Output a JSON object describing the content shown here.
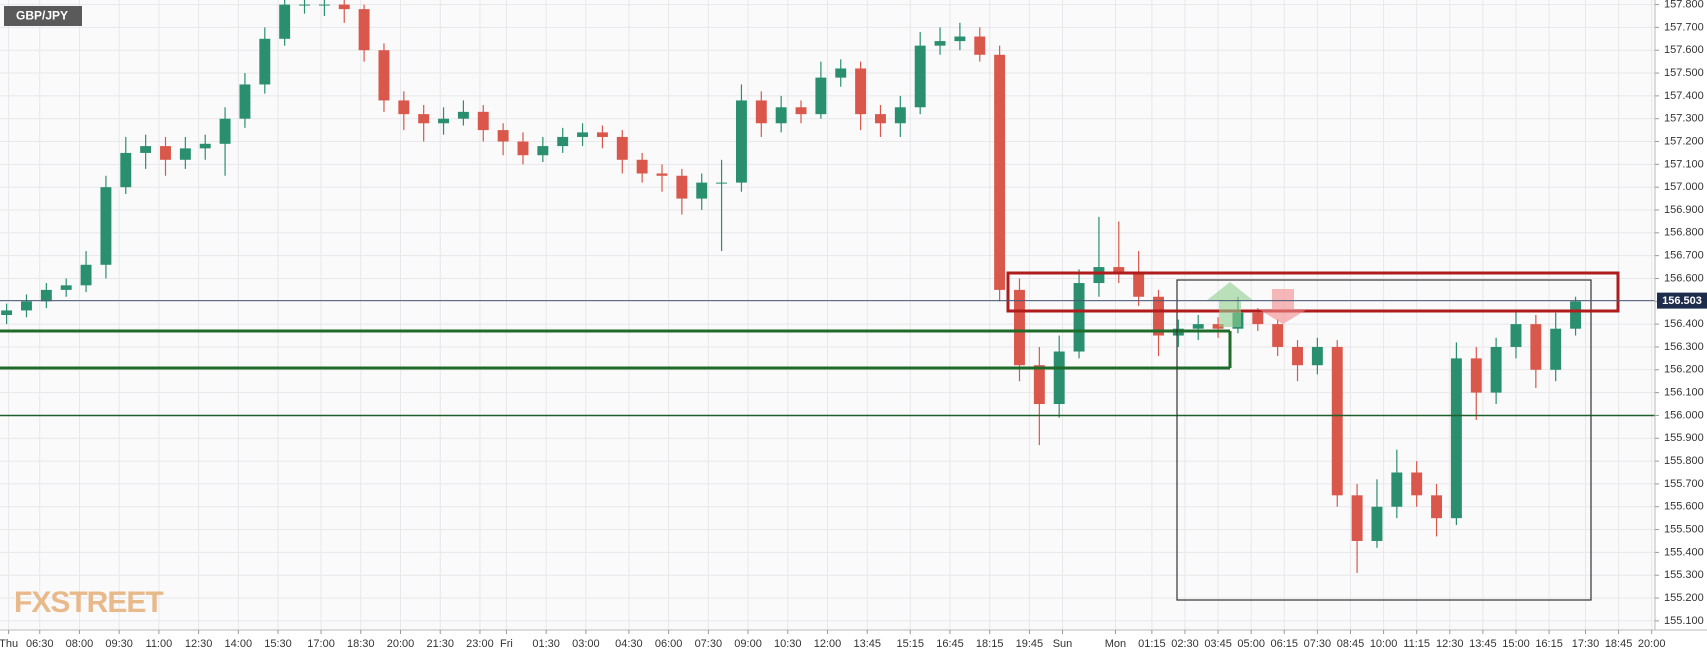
{
  "chart_data": {
    "type": "candlestick",
    "title": "GBP/JPY",
    "watermark": "FXSTREET",
    "x": [
      1,
      4,
      7,
      10,
      13,
      16,
      19,
      22,
      25,
      28,
      31,
      34,
      37,
      40,
      43,
      46,
      49,
      52,
      55,
      58,
      61,
      64,
      67,
      70,
      73,
      76,
      79,
      82,
      85,
      88,
      91,
      94,
      97,
      100,
      103,
      106,
      109,
      112,
      115,
      118,
      121,
      124,
      127,
      130,
      133,
      136,
      139,
      142,
      145,
      148,
      151,
      154,
      157,
      160,
      163,
      166,
      169,
      172,
      175,
      178,
      181,
      184,
      187,
      190,
      193,
      196,
      199,
      202,
      205,
      208,
      211,
      214,
      217,
      220,
      223,
      226,
      229,
      232,
      235,
      238
    ],
    "open": [
      156.44,
      156.46,
      156.5,
      156.55,
      156.57,
      156.66,
      157.0,
      157.15,
      157.18,
      157.12,
      157.17,
      157.19,
      157.3,
      157.45,
      157.65,
      157.8,
      157.8,
      157.8,
      157.78,
      157.6,
      157.38,
      157.32,
      157.28,
      157.3,
      157.33,
      157.25,
      157.2,
      157.14,
      157.18,
      157.22,
      157.24,
      157.22,
      157.12,
      157.06,
      157.05,
      156.95,
      157.02,
      157.02,
      157.38,
      157.28,
      157.35,
      157.32,
      157.48,
      157.52,
      157.32,
      157.28,
      157.35,
      157.62,
      157.64,
      157.66,
      157.58,
      156.55,
      156.22,
      156.05,
      156.28,
      156.58,
      156.65,
      156.62,
      156.52,
      156.35,
      156.38,
      156.4,
      156.38,
      156.45,
      156.4,
      156.3,
      156.22,
      156.3,
      155.65,
      155.45,
      155.6,
      155.75,
      155.65,
      155.55,
      156.25,
      156.1,
      156.3,
      156.4,
      156.2,
      156.38
    ],
    "high": [
      156.49,
      156.53,
      156.58,
      156.6,
      156.72,
      157.05,
      157.22,
      157.23,
      157.22,
      157.22,
      157.23,
      157.35,
      157.5,
      157.7,
      157.82,
      157.82,
      157.82,
      157.82,
      157.8,
      157.63,
      157.42,
      157.36,
      157.35,
      157.38,
      157.36,
      157.28,
      157.24,
      157.22,
      157.26,
      157.28,
      157.27,
      157.25,
      157.15,
      157.1,
      157.08,
      157.06,
      157.12,
      157.45,
      157.42,
      157.4,
      157.38,
      157.55,
      157.56,
      157.55,
      157.36,
      157.4,
      157.68,
      157.7,
      157.72,
      157.7,
      157.62,
      156.6,
      156.3,
      156.35,
      156.64,
      156.87,
      156.85,
      156.72,
      156.55,
      156.42,
      156.44,
      156.43,
      156.52,
      156.47,
      156.42,
      156.33,
      156.34,
      156.33,
      155.7,
      155.72,
      155.85,
      155.8,
      155.7,
      156.32,
      156.3,
      156.34,
      156.46,
      156.44,
      156.45,
      156.52
    ],
    "low": [
      156.4,
      156.43,
      156.47,
      156.52,
      156.54,
      156.6,
      156.97,
      157.08,
      157.05,
      157.08,
      157.12,
      157.05,
      157.26,
      157.41,
      157.62,
      157.76,
      157.75,
      157.72,
      157.55,
      157.33,
      157.25,
      157.2,
      157.23,
      157.27,
      157.2,
      157.14,
      157.1,
      157.11,
      157.15,
      157.18,
      157.17,
      157.06,
      157.02,
      156.98,
      156.88,
      156.9,
      156.72,
      156.98,
      157.22,
      157.24,
      157.28,
      157.3,
      157.44,
      157.25,
      157.22,
      157.22,
      157.32,
      157.58,
      157.6,
      157.55,
      156.5,
      156.15,
      155.87,
      155.99,
      156.25,
      156.52,
      156.58,
      156.48,
      156.26,
      156.3,
      156.33,
      156.34,
      156.36,
      156.37,
      156.26,
      156.15,
      156.18,
      155.6,
      155.31,
      155.42,
      155.55,
      155.6,
      155.47,
      155.52,
      155.98,
      156.05,
      156.25,
      156.12,
      156.15,
      156.35
    ],
    "close": [
      156.46,
      156.5,
      156.55,
      156.57,
      156.66,
      157.0,
      157.15,
      157.18,
      157.12,
      157.17,
      157.19,
      157.3,
      157.45,
      157.65,
      157.8,
      157.8,
      157.8,
      157.78,
      157.6,
      157.38,
      157.32,
      157.28,
      157.3,
      157.33,
      157.25,
      157.2,
      157.14,
      157.18,
      157.22,
      157.24,
      157.22,
      157.12,
      157.06,
      157.05,
      156.95,
      157.02,
      157.02,
      157.38,
      157.28,
      157.35,
      157.32,
      157.48,
      157.52,
      157.32,
      157.28,
      157.35,
      157.62,
      157.64,
      157.66,
      157.58,
      156.55,
      156.22,
      156.05,
      156.28,
      156.58,
      156.65,
      156.62,
      156.52,
      156.35,
      156.38,
      156.4,
      156.38,
      156.45,
      156.4,
      156.3,
      156.22,
      156.3,
      155.65,
      155.45,
      155.6,
      155.75,
      155.65,
      155.55,
      156.25,
      156.1,
      156.3,
      156.4,
      156.2,
      156.38,
      156.5
    ],
    "up_color": "#2a8f6f",
    "down_color": "#d9574b",
    "last_price": 156.503,
    "xlim": [
      0,
      250
    ],
    "xticks": [
      {
        "value": 1.3,
        "label": "Thu"
      },
      {
        "value": 6,
        "label": "06:30"
      },
      {
        "value": 12,
        "label": "08:00"
      },
      {
        "value": 18,
        "label": "09:30"
      },
      {
        "value": 24,
        "label": "11:00"
      },
      {
        "value": 30,
        "label": "12:30"
      },
      {
        "value": 36,
        "label": "14:00"
      },
      {
        "value": 42,
        "label": "15:30"
      },
      {
        "value": 48.5,
        "label": "17:00"
      },
      {
        "value": 54.5,
        "label": "18:30"
      },
      {
        "value": 60.5,
        "label": "20:00"
      },
      {
        "value": 66.5,
        "label": "21:30"
      },
      {
        "value": 72.5,
        "label": "23:00"
      },
      {
        "value": 76.5,
        "label": "Fri"
      },
      {
        "value": 82.5,
        "label": "01:30"
      },
      {
        "value": 88.5,
        "label": "03:00"
      },
      {
        "value": 95,
        "label": "04:30"
      },
      {
        "value": 101,
        "label": "06:00"
      },
      {
        "value": 107,
        "label": "07:30"
      },
      {
        "value": 113,
        "label": "09:00"
      },
      {
        "value": 119,
        "label": "10:30"
      },
      {
        "value": 125,
        "label": "12:00"
      },
      {
        "value": 131,
        "label": "13:45"
      },
      {
        "value": 137.5,
        "label": "15:15"
      },
      {
        "value": 143.5,
        "label": "16:45"
      },
      {
        "value": 149.5,
        "label": "18:15"
      },
      {
        "value": 155.5,
        "label": "19:45"
      },
      {
        "value": 160.5,
        "label": "Sun"
      },
      {
        "value": 168.5,
        "label": "Mon"
      },
      {
        "value": 174,
        "label": "01:15"
      },
      {
        "value": 179,
        "label": "02:30"
      },
      {
        "value": 184,
        "label": "03:45"
      },
      {
        "value": 189,
        "label": "05:00"
      },
      {
        "value": 194,
        "label": "06:15"
      },
      {
        "value": 199,
        "label": "07:30"
      },
      {
        "value": 204,
        "label": "08:45"
      },
      {
        "value": 209,
        "label": "10:00"
      },
      {
        "value": 214,
        "label": "11:15"
      },
      {
        "value": 219,
        "label": "12:30"
      },
      {
        "value": 224,
        "label": "13:45"
      },
      {
        "value": 229,
        "label": "15:00"
      },
      {
        "value": 234,
        "label": "16:15"
      },
      {
        "value": 239.5,
        "label": "17:30"
      },
      {
        "value": 244.5,
        "label": "18:45"
      },
      {
        "value": 249.5,
        "label": "20:00"
      }
    ],
    "ylim": [
      155.06,
      157.82
    ],
    "yticks": [
      {
        "value": 155.1,
        "label": "155.100"
      },
      {
        "value": 155.2,
        "label": "155.200"
      },
      {
        "value": 155.3,
        "label": "155.300"
      },
      {
        "value": 155.4,
        "label": "155.400"
      },
      {
        "value": 155.5,
        "label": "155.500"
      },
      {
        "value": 155.6,
        "label": "155.600"
      },
      {
        "value": 155.7,
        "label": "155.700"
      },
      {
        "value": 155.8,
        "label": "155.800"
      },
      {
        "value": 155.9,
        "label": "155.900"
      },
      {
        "value": 156.0,
        "label": "156.000"
      },
      {
        "value": 156.1,
        "label": "156.100"
      },
      {
        "value": 156.2,
        "label": "156.200"
      },
      {
        "value": 156.3,
        "label": "156.300"
      },
      {
        "value": 156.4,
        "label": "156.400"
      },
      {
        "value": 156.5,
        "label": "156.500"
      },
      {
        "value": 156.6,
        "label": "156.600"
      },
      {
        "value": 156.7,
        "label": "156.700"
      },
      {
        "value": 156.8,
        "label": "156.800"
      },
      {
        "value": 156.9,
        "label": "156.900"
      },
      {
        "value": 157.0,
        "label": "157.000"
      },
      {
        "value": 157.1,
        "label": "157.100"
      },
      {
        "value": 157.2,
        "label": "157.200"
      },
      {
        "value": 157.3,
        "label": "157.300"
      },
      {
        "value": 157.4,
        "label": "157.400"
      },
      {
        "value": 157.5,
        "label": "157.500"
      },
      {
        "value": 157.6,
        "label": "157.600"
      },
      {
        "value": 157.7,
        "label": "157.700"
      },
      {
        "value": 157.8,
        "label": "157.800"
      }
    ],
    "grid": true
  }
}
